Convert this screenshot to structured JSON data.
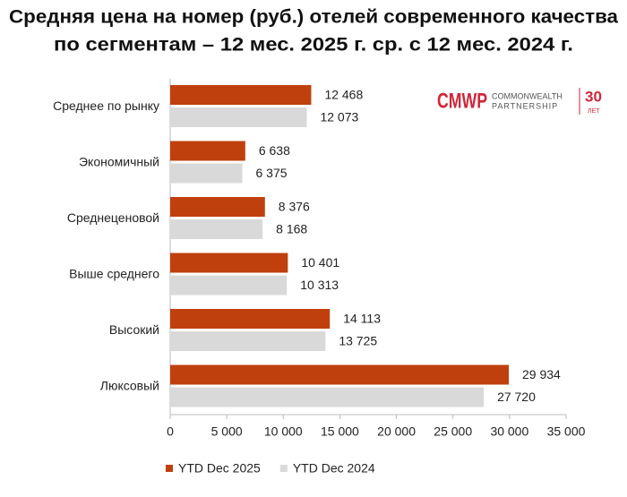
{
  "chart_data": {
    "type": "hbar",
    "title_lines": [
      "Средняя цена на номер (руб.) отелей современного качества",
      "по сегментам – 12 мес. 2025 г. ср. с 12 мес. 2024 г."
    ],
    "categories": [
      "Среднее по рынку",
      "Экономичный",
      "Среднеценовой",
      "Выше среднего",
      "Высокий",
      "Люксовый"
    ],
    "series": [
      {
        "name": "YTD Dec 2025",
        "color": "#c0400d",
        "values": [
          12468,
          6638,
          8376,
          10401,
          14113,
          29934
        ],
        "value_labels": [
          "12 468",
          "6 638",
          "8 376",
          "10 401",
          "14 113",
          "29 934"
        ]
      },
      {
        "name": "YTD Dec 2024",
        "color": "#d9d9d9",
        "values": [
          12073,
          6375,
          8168,
          10313,
          13725,
          27720
        ],
        "value_labels": [
          "12 073",
          "6 375",
          "8 168",
          "10 313",
          "13 725",
          "27 720"
        ]
      }
    ],
    "xlim": [
      0,
      35000
    ],
    "xticks": [
      0,
      {
        "value": 5000,
        "label": "5 000"
      },
      {
        "value": 10000,
        "label": "10 000"
      },
      {
        "value": 15000,
        "label": "15 000"
      },
      {
        "value": 20000,
        "label": "20 000"
      },
      {
        "value": 25000,
        "label": "25 000"
      },
      {
        "value": 30000,
        "label": "30 000"
      },
      {
        "value": 35000,
        "label": "35 000"
      }
    ],
    "legend": "bottom"
  },
  "logo": {
    "mark": "CMWP",
    "line1": "COMMONWEALTH",
    "line2": "PARTNERSHIP",
    "years": "30",
    "years_unit": "ЛЕТ"
  }
}
